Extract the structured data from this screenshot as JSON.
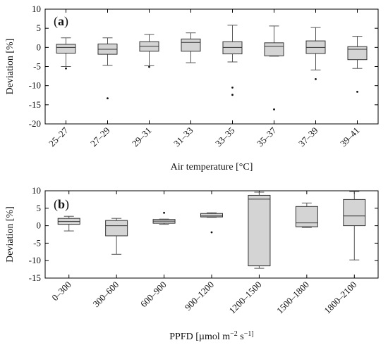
{
  "chart_data": [
    {
      "type": "box",
      "panel_label": "(a)",
      "xlabel": "Air temperature [°C]",
      "ylabel": "Deviation [%]",
      "ylim": [
        -20,
        10
      ],
      "yticks": [
        10,
        5,
        0,
        -5,
        -10,
        -15,
        -20
      ],
      "grid": false,
      "categories": [
        "25–27",
        "27–29",
        "29–31",
        "31–33",
        "33–35",
        "35–37",
        "37–39",
        "39–41"
      ],
      "boxes": [
        {
          "min": -5.0,
          "q1": -1.5,
          "median": 0.0,
          "q3": 0.8,
          "max": 2.5,
          "outliers": [
            -5.5
          ]
        },
        {
          "min": -4.7,
          "q1": -1.8,
          "median": -0.5,
          "q3": 0.9,
          "max": 2.5,
          "outliers": [
            -13.3
          ]
        },
        {
          "min": -4.8,
          "q1": -1.0,
          "median": 0.3,
          "q3": 1.5,
          "max": 3.4,
          "outliers": [
            -5.1
          ]
        },
        {
          "min": -4.0,
          "q1": -1.0,
          "median": 1.3,
          "q3": 2.2,
          "max": 3.8,
          "outliers": []
        },
        {
          "min": -3.8,
          "q1": -1.7,
          "median": 0.0,
          "q3": 1.5,
          "max": 5.8,
          "outliers": [
            -10.5,
            -12.4
          ]
        },
        {
          "min": -2.3,
          "q1": -2.2,
          "median": 0.3,
          "q3": 1.2,
          "max": 5.6,
          "outliers": [
            -16.2
          ]
        },
        {
          "min": -5.9,
          "q1": -1.6,
          "median": 0.0,
          "q3": 1.7,
          "max": 5.2,
          "outliers": [
            -8.3
          ]
        },
        {
          "min": -5.5,
          "q1": -3.2,
          "median": -0.5,
          "q3": 0.2,
          "max": 2.9,
          "outliers": [
            -11.6
          ]
        }
      ]
    },
    {
      "type": "box",
      "panel_label": "(b)",
      "xlabel": "PPFD [µmol m^-2 s^-1]",
      "ylabel": "Deviation [%]",
      "ylim": [
        -15,
        10
      ],
      "yticks": [
        10,
        5,
        0,
        -5,
        -10,
        -15
      ],
      "grid": false,
      "categories": [
        "0–300",
        "300–600",
        "600–900",
        "900–1200",
        "1200–1500",
        "1500–1800",
        "1800–2100"
      ],
      "boxes": [
        {
          "min": -1.5,
          "q1": 0.4,
          "median": 1.2,
          "q3": 2.1,
          "max": 2.7,
          "outliers": []
        },
        {
          "min": -8.2,
          "q1": -2.9,
          "median": 0.0,
          "q3": 1.5,
          "max": 2.1,
          "outliers": []
        },
        {
          "min": 0.4,
          "q1": 0.7,
          "median": 1.3,
          "q3": 1.8,
          "max": 1.9,
          "outliers": [
            3.7
          ]
        },
        {
          "min": 2.4,
          "q1": 2.5,
          "median": 2.8,
          "q3": 3.5,
          "max": 3.7,
          "outliers": [
            -1.9
          ]
        },
        {
          "min": -12.2,
          "q1": -11.5,
          "median": 7.6,
          "q3": 8.7,
          "max": 9.6,
          "outliers": []
        },
        {
          "min": -0.5,
          "q1": -0.3,
          "median": 0.8,
          "q3": 5.5,
          "max": 6.5,
          "outliers": []
        },
        {
          "min": -9.8,
          "q1": 0.0,
          "median": 2.8,
          "q3": 7.5,
          "max": 9.8,
          "outliers": []
        }
      ]
    }
  ]
}
